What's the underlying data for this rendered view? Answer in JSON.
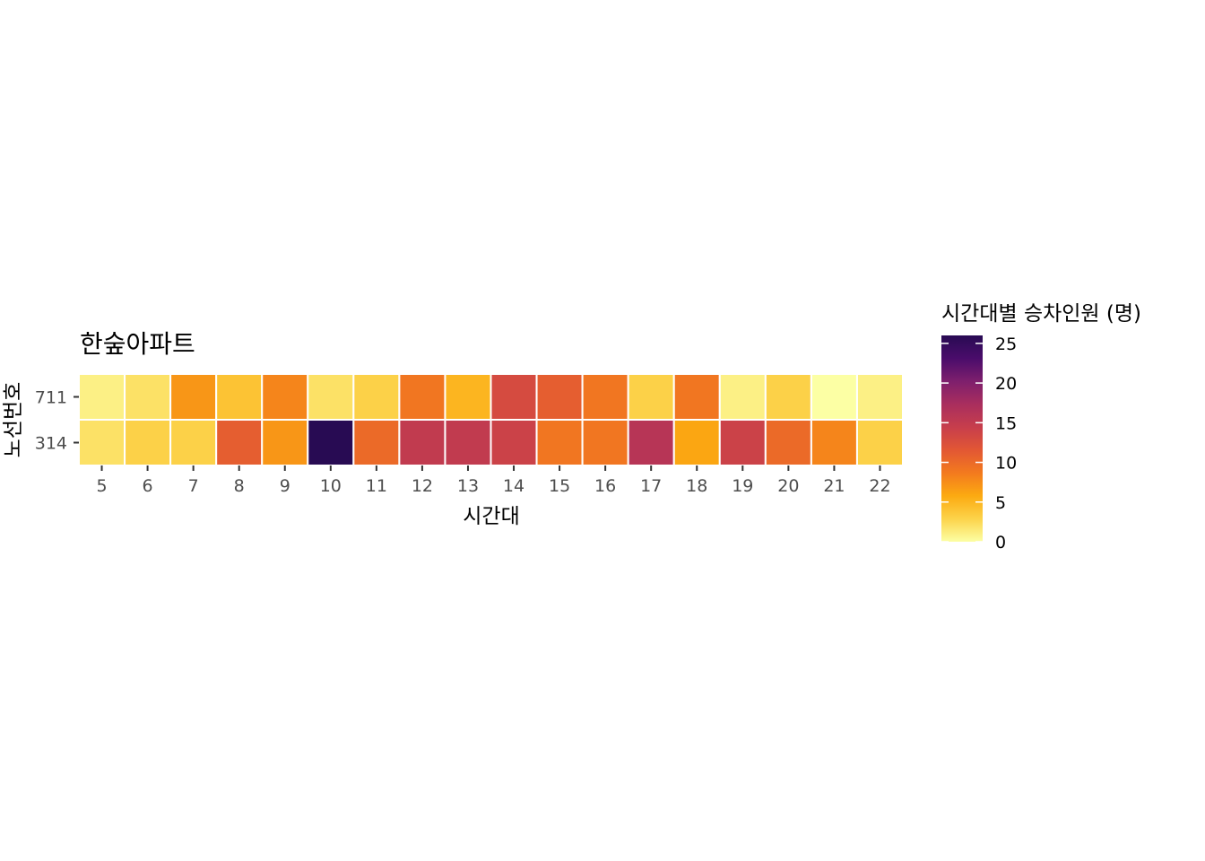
{
  "chart_data": {
    "type": "heatmap",
    "title": "한숲아파트",
    "xlabel": "시간대",
    "ylabel": "노선번호",
    "x": [
      "5",
      "6",
      "7",
      "8",
      "9",
      "10",
      "11",
      "12",
      "13",
      "14",
      "15",
      "16",
      "17",
      "18",
      "19",
      "20",
      "21",
      "22"
    ],
    "y": [
      "711",
      "314"
    ],
    "values": [
      [
        1,
        2,
        7,
        4,
        8,
        2,
        3,
        9,
        5,
        13,
        11,
        9,
        3,
        9,
        1,
        3,
        0,
        1
      ],
      [
        2,
        3,
        3,
        11,
        7,
        26,
        10,
        15,
        15,
        14,
        9,
        9,
        16,
        6,
        14,
        10,
        8,
        3
      ]
    ],
    "legend": {
      "title": "시간대별 승차인원 (명)",
      "ticks": [
        0,
        5,
        10,
        15,
        20,
        25
      ],
      "min": 0,
      "max": 26
    },
    "colors": {
      "scale": [
        "#fcffa4",
        "#fcd34a",
        "#fcaa11",
        "#f37a1e",
        "#e25734",
        "#c73e4c",
        "#a92e5e",
        "#7e1f6d",
        "#4a0c6b",
        "#280b53"
      ],
      "tile_border": "#ffffff",
      "tick_text": "#4d4d4d"
    },
    "grid": false,
    "legend_position": "right"
  }
}
